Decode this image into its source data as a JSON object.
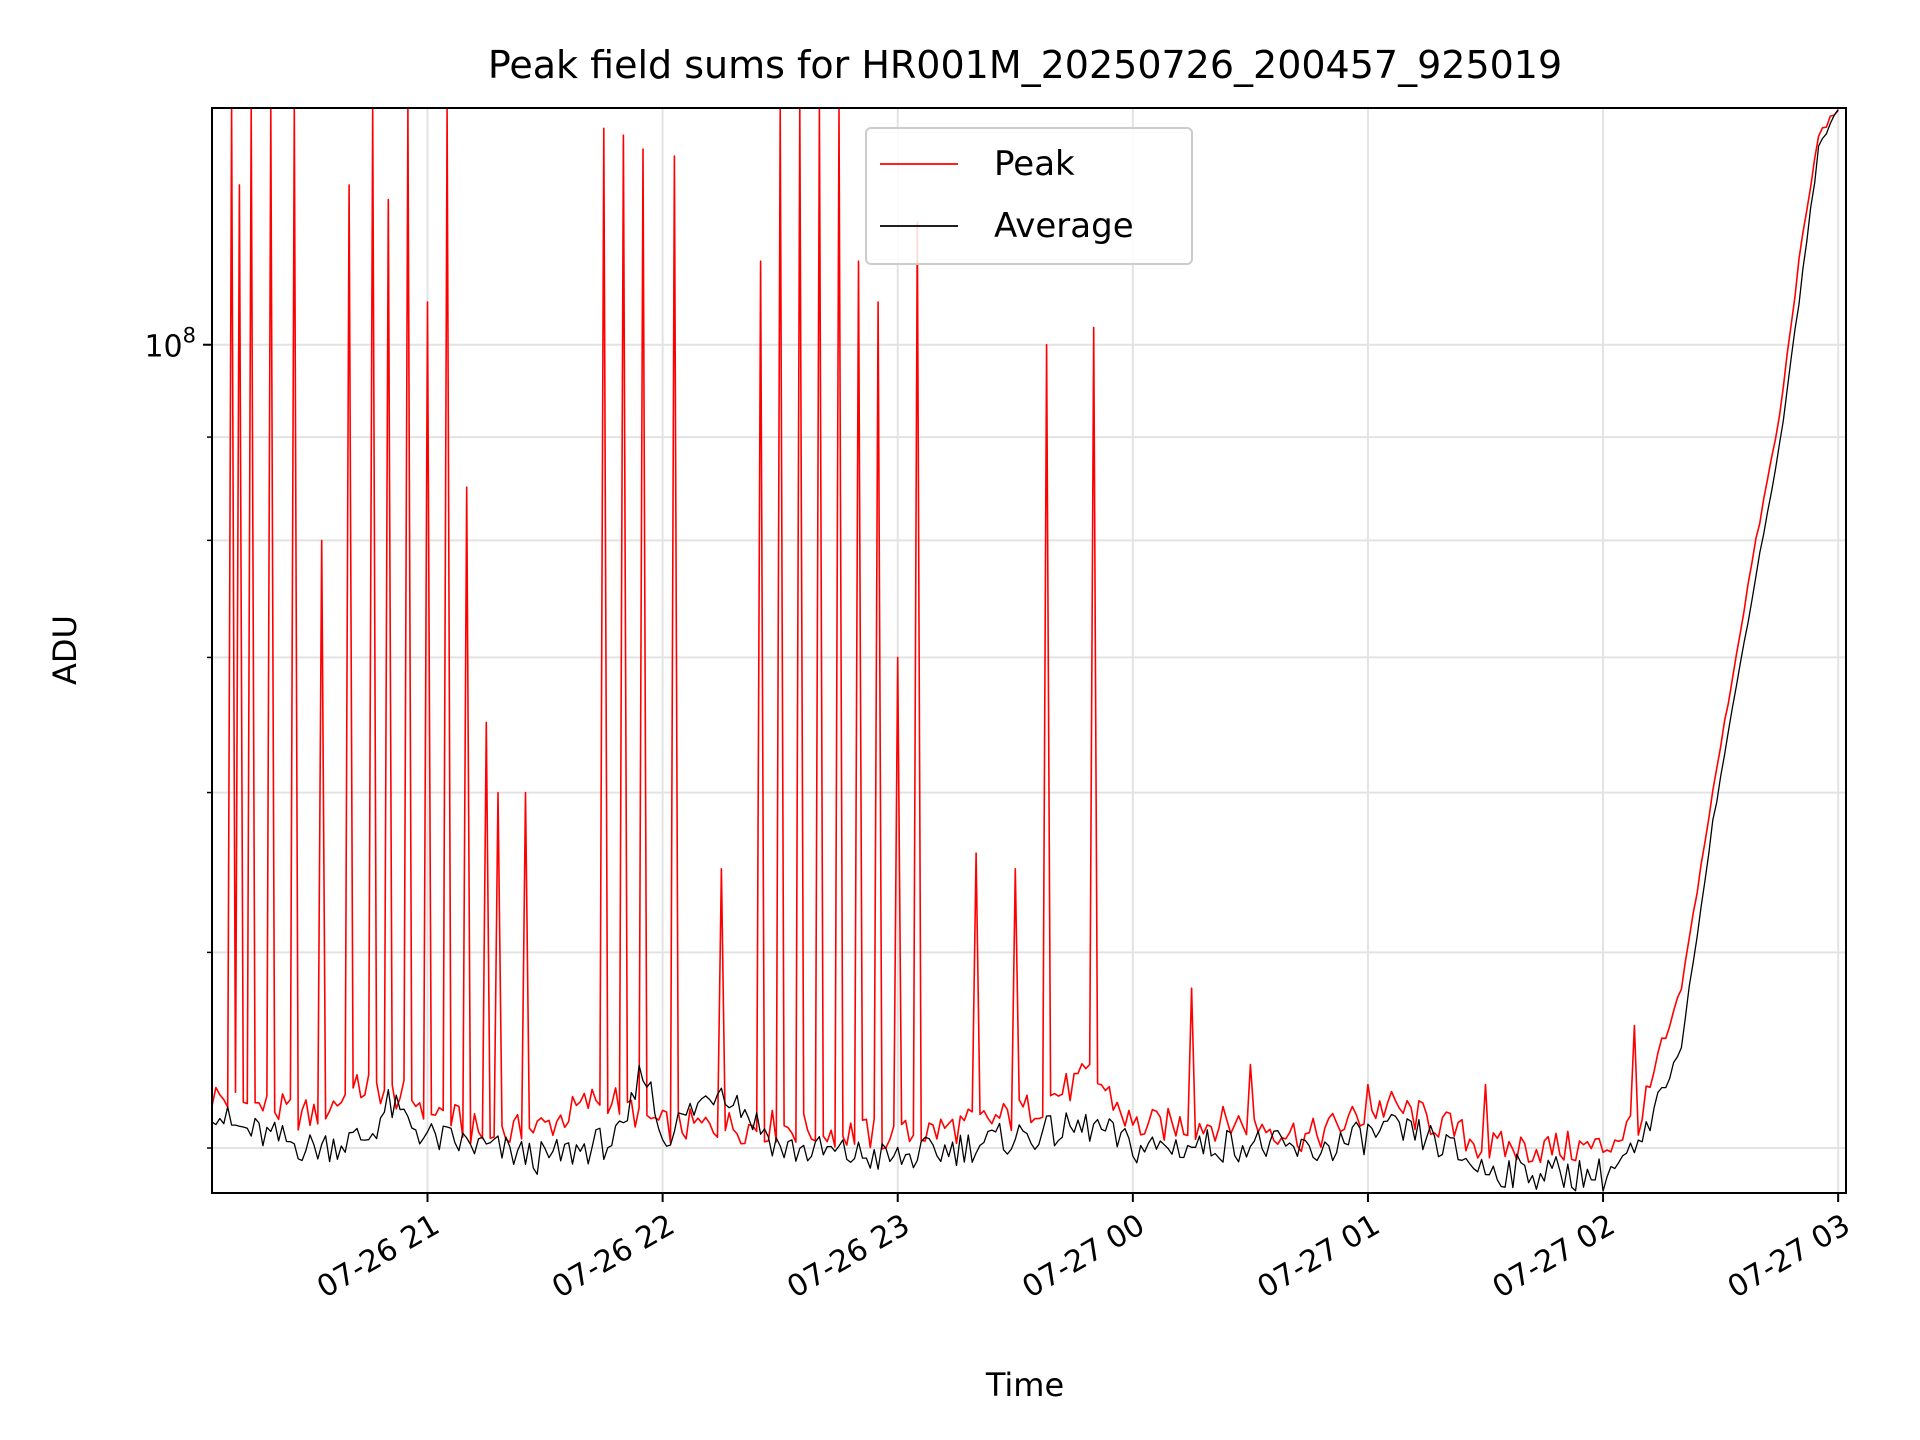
{
  "chart_data": {
    "type": "line",
    "title": "Peak field sums for HR001M_20250726_200457_925019",
    "xlabel": "Time",
    "ylabel": "ADU",
    "x_start": "2025-07-26T20:05:00",
    "x_end": "2025-07-27T03:00:00",
    "xlim": [
      "2025-07-26T20:05:00",
      "2025-07-27T03:02:00"
    ],
    "x_ticks": [
      "07-26 21",
      "07-26 22",
      "07-26 23",
      "07-27 00",
      "07-27 01",
      "07-27 02",
      "07-27 03"
    ],
    "x_tick_values": [
      "2025-07-26T21:00:00",
      "2025-07-26T22:00:00",
      "2025-07-26T23:00:00",
      "2025-07-27T00:00:00",
      "2025-07-27T01:00:00",
      "2025-07-27T02:00:00",
      "2025-07-27T03:00:00"
    ],
    "y_scale": "log",
    "ylim": [
      38000000,
      131000000
    ],
    "y_major_tick": {
      "value": 100000000,
      "base": "10",
      "exp": "8"
    },
    "y_minor_ticks": [
      40000000,
      50000000,
      60000000,
      70000000,
      80000000,
      90000000
    ],
    "grid": true,
    "legend_position": "top-center",
    "series": [
      {
        "name": "Peak",
        "color": "#ff0000",
        "points": [
          [
            "2025-07-26T20:05:00",
            42500000.0
          ],
          [
            "2025-07-26T20:15:00",
            42000000.0
          ],
          [
            "2025-07-26T20:30:00",
            41500000.0
          ],
          [
            "2025-07-26T20:45:00",
            43000000.0
          ],
          [
            "2025-07-26T21:00:00",
            42000000.0
          ],
          [
            "2025-07-26T21:15:00",
            40500000.0
          ],
          [
            "2025-07-26T21:30:00",
            41000000.0
          ],
          [
            "2025-07-26T21:45:00",
            42500000.0
          ],
          [
            "2025-07-26T22:00:00",
            41000000.0
          ],
          [
            "2025-07-26T22:30:00",
            41000000.0
          ],
          [
            "2025-07-26T23:00:00",
            40500000.0
          ],
          [
            "2025-07-26T23:30:00",
            41500000.0
          ],
          [
            "2025-07-26T23:50:00",
            43500000.0
          ],
          [
            "2025-07-27T00:00:00",
            41000000.0
          ],
          [
            "2025-07-27T00:30:00",
            41200000.0
          ],
          [
            "2025-07-27T00:45:00",
            40500000.0
          ],
          [
            "2025-07-27T01:05:00",
            42000000.0
          ],
          [
            "2025-07-27T01:20:00",
            41000000.0
          ],
          [
            "2025-07-27T01:30:00",
            40000000.0
          ],
          [
            "2025-07-27T02:00:00",
            40000000.0
          ],
          [
            "2025-07-27T02:10:00",
            41500000.0
          ],
          [
            "2025-07-27T02:20:00",
            48000000.0
          ],
          [
            "2025-07-27T02:28:00",
            60000000.0
          ],
          [
            "2025-07-27T02:38:00",
            78000000.0
          ],
          [
            "2025-07-27T02:45:00",
            92000000.0
          ],
          [
            "2025-07-27T02:50:00",
            110000000.0
          ],
          [
            "2025-07-27T02:55:00",
            127000000.0
          ],
          [
            "2025-07-27T03:00:00",
            131000000.0
          ]
        ],
        "spikes": [
          [
            "2025-07-26T20:10:00",
            131000000.0
          ],
          [
            "2025-07-26T20:12:00",
            120000000.0
          ],
          [
            "2025-07-26T20:15:00",
            131000000.0
          ],
          [
            "2025-07-26T20:20:00",
            131000000.0
          ],
          [
            "2025-07-26T20:26:00",
            131000000.0
          ],
          [
            "2025-07-26T20:33:00",
            80000000.0
          ],
          [
            "2025-07-26T20:40:00",
            120000000.0
          ],
          [
            "2025-07-26T20:46:00",
            131000000.0
          ],
          [
            "2025-07-26T20:50:00",
            118000000.0
          ],
          [
            "2025-07-26T20:55:00",
            131000000.0
          ],
          [
            "2025-07-26T21:00:00",
            105000000.0
          ],
          [
            "2025-07-26T21:05:00",
            131000000.0
          ],
          [
            "2025-07-26T21:10:00",
            85000000.0
          ],
          [
            "2025-07-26T21:15:00",
            65000000.0
          ],
          [
            "2025-07-26T21:18:00",
            60000000.0
          ],
          [
            "2025-07-26T21:25:00",
            60000000.0
          ],
          [
            "2025-07-26T21:45:00",
            128000000.0
          ],
          [
            "2025-07-26T21:50:00",
            127000000.0
          ],
          [
            "2025-07-26T21:55:00",
            125000000.0
          ],
          [
            "2025-07-26T22:03:00",
            124000000.0
          ],
          [
            "2025-07-26T22:15:00",
            55000000.0
          ],
          [
            "2025-07-26T22:25:00",
            110000000.0
          ],
          [
            "2025-07-26T22:30:00",
            131000000.0
          ],
          [
            "2025-07-26T22:35:00",
            131000000.0
          ],
          [
            "2025-07-26T22:40:00",
            131000000.0
          ],
          [
            "2025-07-26T22:45:00",
            131000000.0
          ],
          [
            "2025-07-26T22:50:00",
            110000000.0
          ],
          [
            "2025-07-26T22:55:00",
            105000000.0
          ],
          [
            "2025-07-26T23:00:00",
            70000000.0
          ],
          [
            "2025-07-26T23:05:00",
            115000000.0
          ],
          [
            "2025-07-26T23:20:00",
            56000000.0
          ],
          [
            "2025-07-26T23:30:00",
            55000000.0
          ],
          [
            "2025-07-26T23:38:00",
            100000000.0
          ],
          [
            "2025-07-26T23:50:00",
            102000000.0
          ],
          [
            "2025-07-27T00:15:00",
            48000000.0
          ],
          [
            "2025-07-27T00:30:00",
            44000000.0
          ],
          [
            "2025-07-27T01:00:00",
            43000000.0
          ],
          [
            "2025-07-27T01:30:00",
            43000000.0
          ],
          [
            "2025-07-27T02:08:00",
            46000000.0
          ]
        ]
      },
      {
        "name": "Average",
        "color": "#000000",
        "points": [
          [
            "2025-07-26T20:05:00",
            42000000.0
          ],
          [
            "2025-07-26T20:10:00",
            41000000.0
          ],
          [
            "2025-07-26T20:20:00",
            40500000.0
          ],
          [
            "2025-07-26T20:30:00",
            40000000.0
          ],
          [
            "2025-07-26T20:45:00",
            40500000.0
          ],
          [
            "2025-07-26T20:50:00",
            42000000.0
          ],
          [
            "2025-07-26T21:00:00",
            40500000.0
          ],
          [
            "2025-07-26T21:15:00",
            40000000.0
          ],
          [
            "2025-07-26T21:30:00",
            39500000.0
          ],
          [
            "2025-07-26T21:50:00",
            40500000.0
          ],
          [
            "2025-07-26T21:55:00",
            44000000.0
          ],
          [
            "2025-07-26T22:00:00",
            40500000.0
          ],
          [
            "2025-07-26T22:15:00",
            43000000.0
          ],
          [
            "2025-07-26T22:30:00",
            40000000.0
          ],
          [
            "2025-07-26T23:00:00",
            39500000.0
          ],
          [
            "2025-07-26T23:30:00",
            40500000.0
          ],
          [
            "2025-07-26T23:50:00",
            41000000.0
          ],
          [
            "2025-07-27T00:00:00",
            40000000.0
          ],
          [
            "2025-07-27T00:30:00",
            40200000.0
          ],
          [
            "2025-07-27T00:45:00",
            39800000.0
          ],
          [
            "2025-07-27T01:05:00",
            40800000.0
          ],
          [
            "2025-07-27T01:15:00",
            40500000.0
          ],
          [
            "2025-07-27T01:30:00",
            39000000.0
          ],
          [
            "2025-07-27T02:00:00",
            38800000.0
          ],
          [
            "2025-07-27T02:10:00",
            40000000.0
          ],
          [
            "2025-07-27T02:20:00",
            45000000.0
          ],
          [
            "2025-07-27T02:28:00",
            58000000.0
          ],
          [
            "2025-07-27T02:38:00",
            75000000.0
          ],
          [
            "2025-07-27T02:45:00",
            89000000.0
          ],
          [
            "2025-07-27T02:50:00",
            105000000.0
          ],
          [
            "2025-07-27T02:55:00",
            125000000.0
          ],
          [
            "2025-07-27T03:00:00",
            131000000.0
          ]
        ]
      }
    ]
  }
}
